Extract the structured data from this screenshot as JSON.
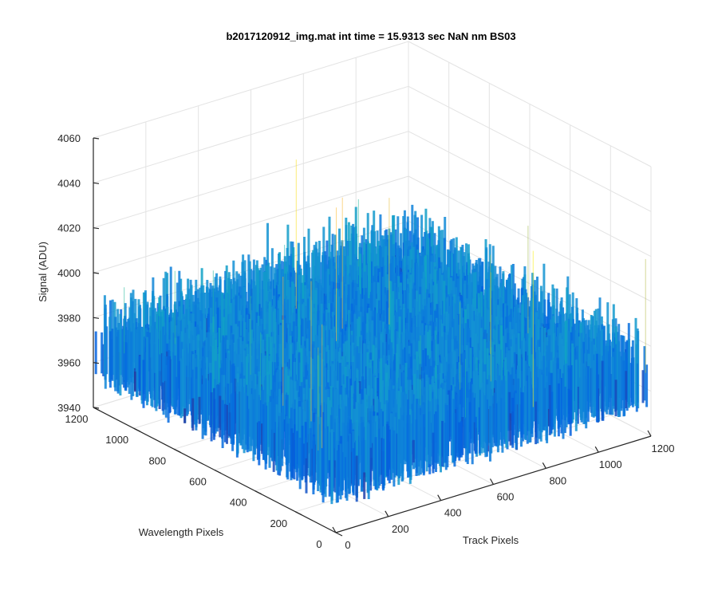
{
  "chart_data": {
    "type": "surface",
    "title": "b2017120912_img.mat int time = 15.9313 sec  NaN nm BS03",
    "xlabel": "Track Pixels",
    "ylabel": "Wavelength Pixels",
    "zlabel": "Signal (ADU)",
    "xlim": [
      0,
      1200
    ],
    "ylim": [
      0,
      1200
    ],
    "zlim": [
      3940,
      4060
    ],
    "x_ticks": [
      "0",
      "200",
      "400",
      "600",
      "800",
      "1000",
      "1200"
    ],
    "y_ticks": [
      "0",
      "200",
      "400",
      "600",
      "800",
      "1000",
      "1200"
    ],
    "z_ticks": [
      "3940",
      "3960",
      "3980",
      "4000",
      "4020",
      "4040",
      "4060"
    ],
    "surface": {
      "description_values": {
        "mean_signal": 3968,
        "noise_min": 3950,
        "noise_max": 4040
      }
    },
    "grid": true,
    "colormap": "parula"
  }
}
